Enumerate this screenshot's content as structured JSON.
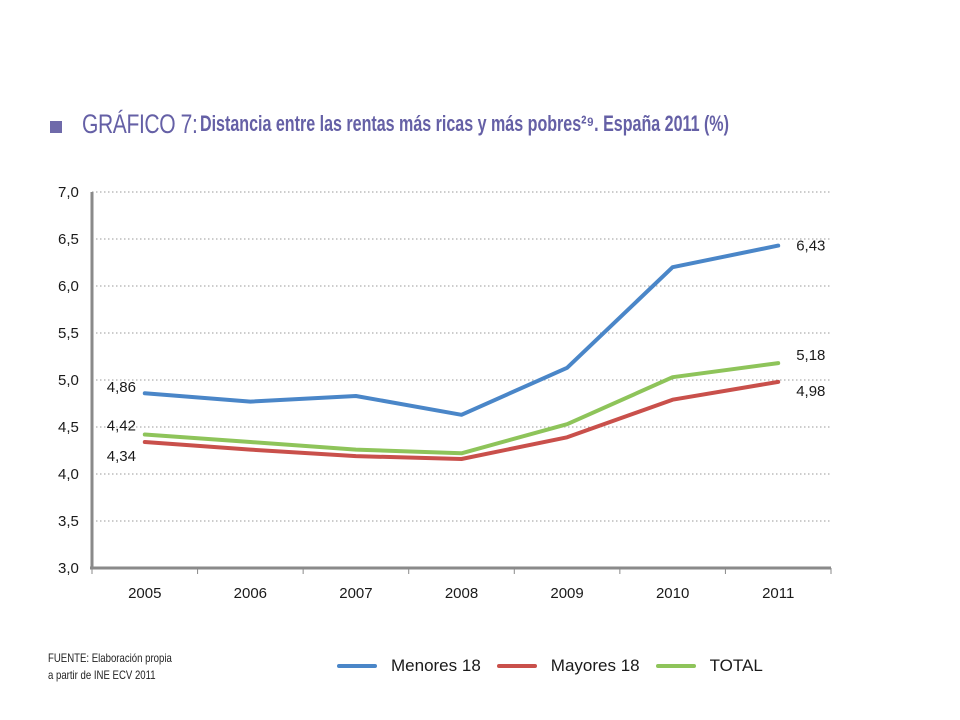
{
  "title": {
    "prefix": "GRÁFICO 7:",
    "text": "Distancia entre las rentas más ricas y más pobres²⁹. España 2011 (%)"
  },
  "source": {
    "line1": "FUENTE: Elaboración propia",
    "line2": "a partir de INE ECV 2011"
  },
  "chart_data": {
    "type": "line",
    "title": "Distancia entre las rentas más ricas y más pobres. España 2011 (%)",
    "xlabel": "",
    "ylabel": "",
    "x": [
      "2005",
      "2006",
      "2007",
      "2008",
      "2009",
      "2010",
      "2011"
    ],
    "ylim": [
      3.0,
      7.0
    ],
    "yticks": [
      3.0,
      3.5,
      4.0,
      4.5,
      5.0,
      5.5,
      6.0,
      6.5,
      7.0
    ],
    "ytick_labels": [
      "3,0",
      "3,5",
      "4,0",
      "4,5",
      "5,0",
      "5,5",
      "6,0",
      "6,5",
      "7,0"
    ],
    "grid": "horizontal dotted",
    "legend_position": "bottom",
    "series": [
      {
        "name": "Menores 18",
        "color": "#4a86c8",
        "values": [
          4.86,
          4.77,
          4.83,
          4.63,
          5.13,
          6.2,
          6.43
        ]
      },
      {
        "name": "Mayores 18",
        "color": "#c9504b",
        "values": [
          4.34,
          4.26,
          4.19,
          4.16,
          4.39,
          4.79,
          4.98
        ]
      },
      {
        "name": "TOTAL",
        "color": "#8ec45a",
        "values": [
          4.42,
          4.34,
          4.26,
          4.22,
          4.53,
          5.03,
          5.18
        ]
      }
    ],
    "annotations": [
      {
        "series": "Menores 18",
        "x": "2005",
        "label": "4,86"
      },
      {
        "series": "TOTAL",
        "x": "2005",
        "label": "4,42"
      },
      {
        "series": "Mayores 18",
        "x": "2005",
        "label": "4,34"
      },
      {
        "series": "Menores 18",
        "x": "2011",
        "label": "6,43"
      },
      {
        "series": "TOTAL",
        "x": "2011",
        "label": "5,18"
      },
      {
        "series": "Mayores 18",
        "x": "2011",
        "label": "4,98"
      }
    ]
  }
}
